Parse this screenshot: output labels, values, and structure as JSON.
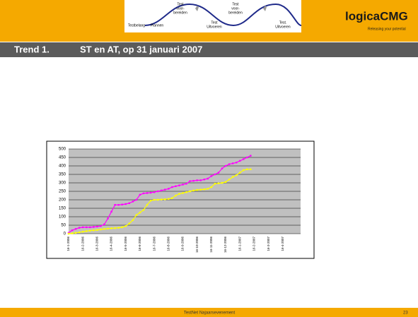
{
  "header": {
    "diagram": {
      "labels": [
        [
          "Testbelang"
        ],
        [
          "Plannen"
        ],
        [
          "Test",
          "voor-",
          "bereiden"
        ],
        [
          "Test",
          "Uitvoeren"
        ],
        [
          "Test",
          "voor-",
          "bereiden"
        ],
        [
          "Test.",
          "Uitvoeren"
        ]
      ]
    },
    "logo": {
      "name": "logicaCMG",
      "tagline": "Releasing your potential"
    },
    "title": {
      "number": "Trend 1.",
      "text": "ST en AT, op 31 januari 2007"
    }
  },
  "chart_data": {
    "type": "line",
    "categories": [
      "16-1-2006",
      null,
      null,
      null,
      "16-2-2006",
      null,
      null,
      null,
      "16-3-2006",
      null,
      null,
      null,
      "16-4-2006",
      null,
      null,
      null,
      "16-5-2006",
      null,
      null,
      null,
      "16-6-2006",
      null,
      null,
      null,
      "16-7-2006",
      null,
      null,
      null,
      "16-8-2006",
      null,
      null,
      null,
      "16-9-2006",
      null,
      null,
      null,
      "16-10-2006",
      null,
      null,
      null,
      "16-11-2006",
      null,
      null,
      null,
      "16-12-2006",
      null,
      null,
      null,
      "16-1-2007",
      null,
      null,
      null,
      "16-2-2007",
      null,
      null,
      null,
      "16-3-2007",
      null,
      null,
      null,
      "16-4-2007",
      null,
      null,
      null,
      null
    ],
    "series": [
      {
        "color": "#ff00ff",
        "values": [
          5,
          20,
          28,
          35,
          38,
          38,
          38,
          40,
          42,
          45,
          55,
          90,
          130,
          170,
          170,
          172,
          175,
          180,
          190,
          200,
          230,
          238,
          240,
          242,
          245,
          250,
          255,
          260,
          265,
          275,
          280,
          285,
          290,
          295,
          310,
          312,
          315,
          315,
          320,
          325,
          340,
          350,
          360,
          385,
          400,
          410,
          415,
          420,
          430,
          440,
          450,
          460,
          null,
          null,
          null,
          null,
          null,
          null,
          null,
          null,
          null,
          null,
          null,
          null,
          null
        ]
      },
      {
        "color": "#ffff00",
        "values": [
          0,
          2,
          5,
          8,
          12,
          15,
          18,
          20,
          22,
          25,
          28,
          30,
          32,
          33,
          35,
          38,
          45,
          60,
          80,
          110,
          125,
          140,
          170,
          195,
          200,
          200,
          202,
          203,
          205,
          210,
          225,
          235,
          240,
          245,
          250,
          255,
          258,
          260,
          262,
          265,
          275,
          295,
          297,
          300,
          305,
          320,
          335,
          345,
          360,
          375,
          380,
          380,
          null,
          null,
          null,
          null,
          null,
          null,
          null,
          null,
          null,
          null,
          null,
          null,
          null
        ]
      }
    ],
    "ylim": [
      0,
      500
    ],
    "yticks": [
      0,
      50,
      100,
      150,
      200,
      250,
      300,
      350,
      400,
      450,
      500
    ],
    "grid": true
  },
  "footer": {
    "text": "TestNet Najaarsevenement",
    "page": "23"
  }
}
